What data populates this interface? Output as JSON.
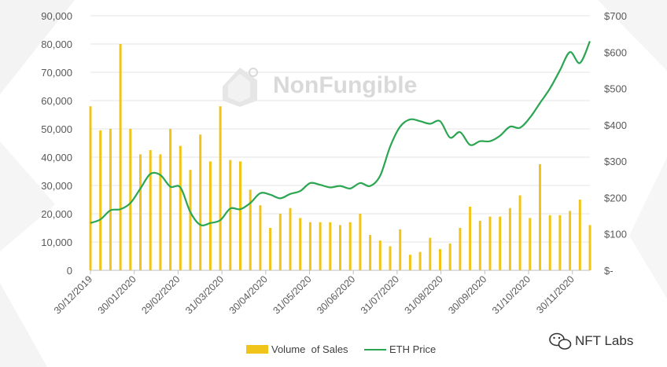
{
  "chart_data": {
    "type": "bar+line",
    "title": "",
    "xlabel": "",
    "ylabel_left": "",
    "ylabel_right": "",
    "ylim_left": [
      0,
      90000
    ],
    "ylim_right": [
      0,
      700
    ],
    "left_ticks": [
      "0",
      "10,000",
      "20,000",
      "30,000",
      "40,000",
      "50,000",
      "60,000",
      "70,000",
      "80,000",
      "90,000"
    ],
    "right_ticks": [
      "$-",
      "$100",
      "$200",
      "$300",
      "$400",
      "$500",
      "$600",
      "$700"
    ],
    "x_tick_labels": [
      "30/12/2019",
      "30/01/2020",
      "29/02/2020",
      "31/03/2020",
      "30/04/2020",
      "31/05/2020",
      "30/06/2020",
      "31/07/2020",
      "31/08/2020",
      "30/09/2020",
      "31/10/2020",
      "30/11/2020"
    ],
    "bar_color": "#f0c419",
    "line_color": "#2aa551",
    "legend_position": "bottom",
    "series": [
      {
        "name": "Volume  of Sales",
        "type": "bar",
        "axis": "left",
        "values": [
          58000,
          49500,
          50000,
          80000,
          50000,
          41000,
          42500,
          41000,
          50000,
          44000,
          35500,
          48000,
          38500,
          58000,
          39000,
          38500,
          28500,
          23000,
          15000,
          20000,
          22000,
          18500,
          17000,
          17000,
          17000,
          16000,
          17000,
          20000,
          12500,
          10500,
          8500,
          14500,
          5500,
          6500,
          11500,
          7500,
          9500,
          15000,
          22500,
          17500,
          19000,
          19000,
          22000,
          26500,
          18500,
          37500,
          19500,
          19500,
          21000,
          25000,
          16000
        ]
      },
      {
        "name": "ETH Price",
        "type": "line",
        "axis": "right",
        "values": [
          130,
          140,
          165,
          168,
          185,
          225,
          265,
          262,
          230,
          228,
          160,
          125,
          130,
          138,
          170,
          168,
          185,
          212,
          208,
          198,
          210,
          218,
          240,
          235,
          228,
          232,
          225,
          240,
          232,
          260,
          340,
          395,
          415,
          410,
          403,
          410,
          365,
          380,
          345,
          355,
          355,
          370,
          395,
          392,
          420,
          460,
          500,
          550,
          600,
          570,
          630
        ]
      }
    ]
  },
  "watermark": {
    "brand_text": "NonFungible",
    "badge_text": "NFT Labs"
  }
}
